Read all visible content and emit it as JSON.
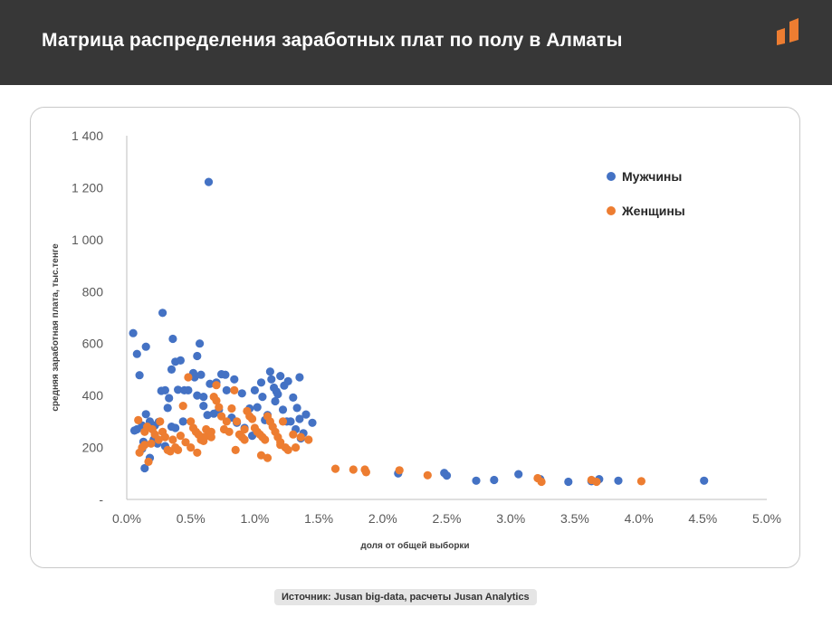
{
  "header": {
    "title": "Матрица распределения заработных плат по полу в Алматы",
    "logo_icon": "brand-logo-icon"
  },
  "colors": {
    "header_bg": "#373737",
    "men": "#4472C4",
    "women": "#ED7D31",
    "axis": "#bfbfbf",
    "text": "#595959"
  },
  "source": "Источник: Jusan big-data, расчеты Jusan Analytics",
  "chart_data": {
    "type": "scatter",
    "xlabel": "доля от общей выборки",
    "ylabel": "средняя заработная плата, тыс.тенге",
    "xlim": [
      0,
      5
    ],
    "ylim": [
      0,
      1400
    ],
    "x_ticks": [
      0,
      0.5,
      1,
      1.5,
      2,
      2.5,
      3,
      3.5,
      4,
      4.5,
      5
    ],
    "x_tick_labels": [
      "0.0%",
      "0.5%",
      "1.0%",
      "1.5%",
      "2.0%",
      "2.5%",
      "3.0%",
      "3.5%",
      "4.0%",
      "4.5%",
      "5.0%"
    ],
    "y_ticks": [
      0,
      200,
      400,
      600,
      800,
      1000,
      1200,
      1400
    ],
    "y_tick_labels": [
      "-",
      "200",
      "400",
      "600",
      "800",
      "1 000",
      "1 200",
      "1 400"
    ],
    "grid": false,
    "legend_position": "top-right",
    "series": [
      {
        "name": "Мужчины",
        "color": "#4472C4",
        "points": [
          [
            0.64,
            1222
          ],
          [
            0.05,
            640
          ],
          [
            0.28,
            718
          ],
          [
            0.08,
            560
          ],
          [
            0.15,
            588
          ],
          [
            0.36,
            618
          ],
          [
            0.57,
            600
          ],
          [
            0.1,
            478
          ],
          [
            0.55,
            552
          ],
          [
            0.38,
            530
          ],
          [
            0.42,
            535
          ],
          [
            0.35,
            500
          ],
          [
            0.58,
            480
          ],
          [
            0.65,
            445
          ],
          [
            0.74,
            482
          ],
          [
            0.77,
            480
          ],
          [
            0.84,
            462
          ],
          [
            0.9,
            408
          ],
          [
            1.0,
            420
          ],
          [
            1.05,
            450
          ],
          [
            1.12,
            492
          ],
          [
            1.13,
            462
          ],
          [
            1.2,
            475
          ],
          [
            1.15,
            430
          ],
          [
            1.17,
            415
          ],
          [
            1.23,
            438
          ],
          [
            1.26,
            455
          ],
          [
            1.35,
            470
          ],
          [
            1.3,
            392
          ],
          [
            1.4,
            327
          ],
          [
            1.45,
            295
          ],
          [
            1.33,
            352
          ],
          [
            1.35,
            310
          ],
          [
            1.25,
            300
          ],
          [
            0.78,
            420
          ],
          [
            0.7,
            450
          ],
          [
            0.6,
            395
          ],
          [
            0.55,
            400
          ],
          [
            0.52,
            486
          ],
          [
            0.45,
            420
          ],
          [
            0.4,
            422
          ],
          [
            0.33,
            390
          ],
          [
            0.3,
            420
          ],
          [
            0.27,
            418
          ],
          [
            0.25,
            298
          ],
          [
            0.22,
            285
          ],
          [
            0.18,
            300
          ],
          [
            0.15,
            328
          ],
          [
            0.12,
            285
          ],
          [
            0.08,
            270
          ],
          [
            0.06,
            265
          ],
          [
            0.13,
            222
          ],
          [
            0.12,
            195
          ],
          [
            0.14,
            120
          ],
          [
            0.18,
            160
          ],
          [
            0.21,
            230
          ],
          [
            0.32,
            352
          ],
          [
            0.35,
            280
          ],
          [
            0.38,
            275
          ],
          [
            0.44,
            300
          ],
          [
            0.48,
            420
          ],
          [
            0.53,
            470
          ],
          [
            0.6,
            360
          ],
          [
            0.63,
            325
          ],
          [
            0.68,
            330
          ],
          [
            0.72,
            345
          ],
          [
            0.82,
            315
          ],
          [
            0.86,
            295
          ],
          [
            0.92,
            275
          ],
          [
            0.96,
            350
          ],
          [
            1.02,
            355
          ],
          [
            1.08,
            305
          ],
          [
            1.1,
            325
          ],
          [
            1.16,
            378
          ],
          [
            1.18,
            405
          ],
          [
            1.22,
            345
          ],
          [
            1.28,
            300
          ],
          [
            1.32,
            270
          ],
          [
            1.36,
            235
          ],
          [
            1.38,
            255
          ],
          [
            1.06,
            395
          ],
          [
            0.98,
            245
          ],
          [
            0.3,
            205
          ],
          [
            0.24,
            215
          ],
          [
            2.12,
            100
          ],
          [
            2.48,
            102
          ],
          [
            2.5,
            92
          ],
          [
            2.73,
            72
          ],
          [
            2.87,
            75
          ],
          [
            3.06,
            97
          ],
          [
            3.23,
            78
          ],
          [
            3.45,
            68
          ],
          [
            3.63,
            70
          ],
          [
            3.69,
            78
          ],
          [
            3.84,
            72
          ],
          [
            4.51,
            72
          ]
        ]
      },
      {
        "name": "Женщины",
        "color": "#ED7D31",
        "points": [
          [
            0.09,
            305
          ],
          [
            0.14,
            260
          ],
          [
            0.16,
            280
          ],
          [
            0.2,
            270
          ],
          [
            0.22,
            250
          ],
          [
            0.25,
            230
          ],
          [
            0.1,
            180
          ],
          [
            0.12,
            200
          ],
          [
            0.14,
            210
          ],
          [
            0.17,
            145
          ],
          [
            0.19,
            215
          ],
          [
            0.26,
            300
          ],
          [
            0.28,
            260
          ],
          [
            0.3,
            240
          ],
          [
            0.32,
            190
          ],
          [
            0.34,
            185
          ],
          [
            0.36,
            230
          ],
          [
            0.38,
            200
          ],
          [
            0.4,
            190
          ],
          [
            0.42,
            245
          ],
          [
            0.44,
            360
          ],
          [
            0.46,
            220
          ],
          [
            0.48,
            470
          ],
          [
            0.5,
            300
          ],
          [
            0.52,
            275
          ],
          [
            0.54,
            260
          ],
          [
            0.56,
            250
          ],
          [
            0.58,
            230
          ],
          [
            0.6,
            225
          ],
          [
            0.62,
            270
          ],
          [
            0.64,
            245
          ],
          [
            0.66,
            260
          ],
          [
            0.68,
            395
          ],
          [
            0.7,
            380
          ],
          [
            0.72,
            355
          ],
          [
            0.74,
            320
          ],
          [
            0.76,
            270
          ],
          [
            0.78,
            300
          ],
          [
            0.8,
            260
          ],
          [
            0.82,
            350
          ],
          [
            0.84,
            420
          ],
          [
            0.86,
            300
          ],
          [
            0.88,
            250
          ],
          [
            0.9,
            240
          ],
          [
            0.92,
            230
          ],
          [
            0.94,
            340
          ],
          [
            0.96,
            320
          ],
          [
            0.98,
            310
          ],
          [
            1.0,
            275
          ],
          [
            1.02,
            260
          ],
          [
            1.04,
            250
          ],
          [
            1.06,
            240
          ],
          [
            1.08,
            230
          ],
          [
            1.1,
            320
          ],
          [
            1.12,
            300
          ],
          [
            1.14,
            280
          ],
          [
            1.16,
            260
          ],
          [
            1.18,
            240
          ],
          [
            1.2,
            220
          ],
          [
            1.22,
            300
          ],
          [
            1.24,
            200
          ],
          [
            1.26,
            190
          ],
          [
            1.3,
            250
          ],
          [
            1.32,
            200
          ],
          [
            1.36,
            240
          ],
          [
            1.42,
            230
          ],
          [
            0.5,
            200
          ],
          [
            0.55,
            180
          ],
          [
            0.6,
            240
          ],
          [
            0.66,
            240
          ],
          [
            0.7,
            440
          ],
          [
            0.85,
            190
          ],
          [
            0.92,
            270
          ],
          [
            1.05,
            170
          ],
          [
            1.1,
            160
          ],
          [
            1.2,
            210
          ],
          [
            1.63,
            118
          ],
          [
            1.77,
            115
          ],
          [
            1.86,
            115
          ],
          [
            1.87,
            105
          ],
          [
            2.13,
            112
          ],
          [
            2.35,
            93
          ],
          [
            3.21,
            82
          ],
          [
            3.24,
            68
          ],
          [
            3.63,
            75
          ],
          [
            3.67,
            68
          ],
          [
            4.02,
            70
          ]
        ]
      }
    ]
  }
}
